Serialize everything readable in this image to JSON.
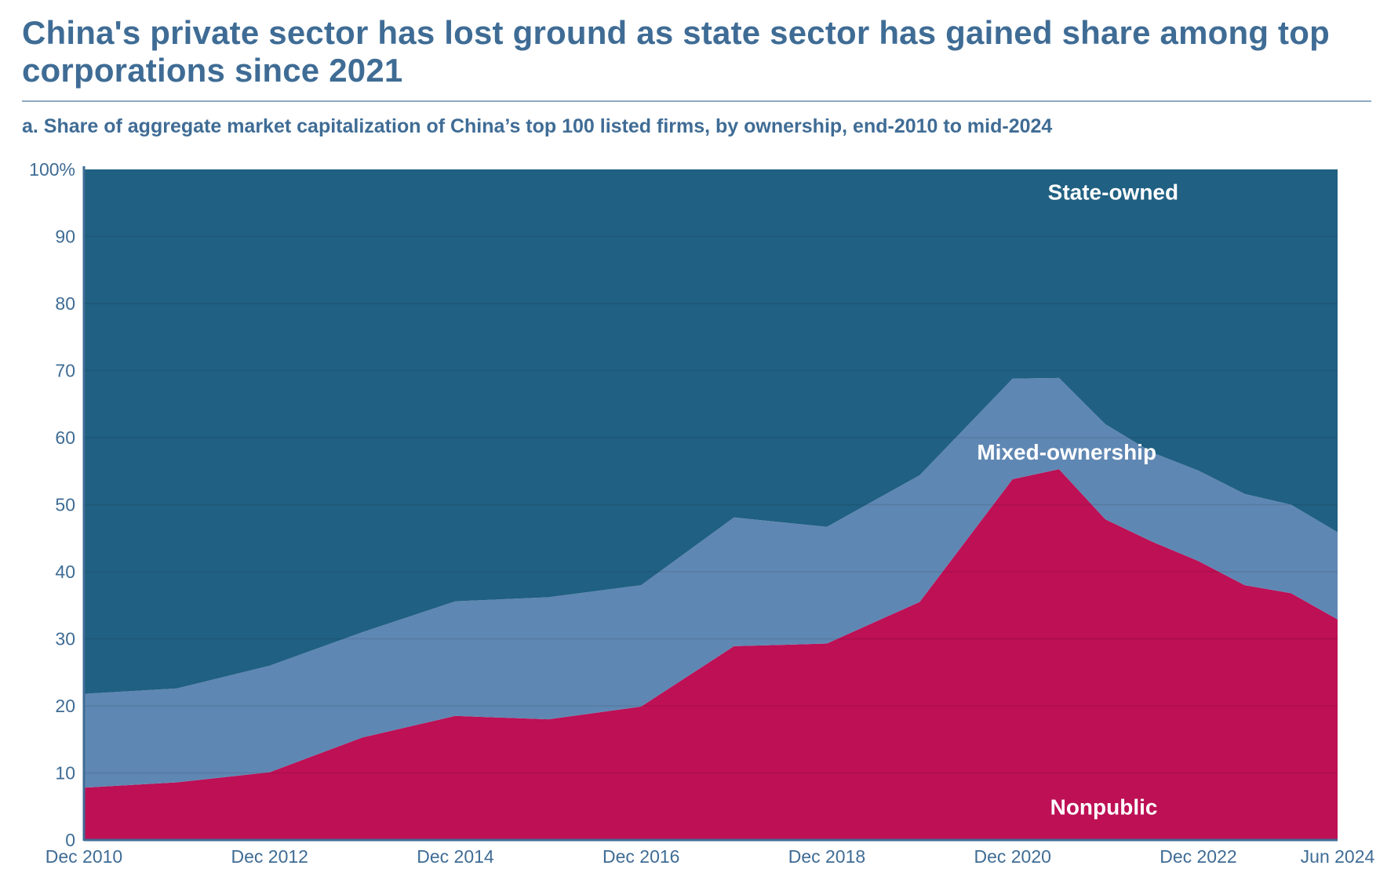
{
  "title": "China's private sector has lost ground as state sector has gained share among top corporations since 2021",
  "subtitle": "a. Share of aggregate market capitalization of China’s top 100 listed firms, by ownership, end-2010 to mid-2024",
  "colors": {
    "state_owned": "#206082",
    "mixed_ownership": "#5f87b3",
    "nonpublic": "#bd1055",
    "axis_text": "#3f6c95",
    "gridline": "#1a5575"
  },
  "chart_data": {
    "type": "area",
    "stacked": true,
    "x": [
      "Dec 2010",
      "Dec 2011",
      "Dec 2012",
      "Dec 2013",
      "Dec 2014",
      "Dec 2015",
      "Dec 2016",
      "Dec 2017",
      "Dec 2018",
      "Dec 2019",
      "Dec 2020",
      "Jun 2021",
      "Dec 2021",
      "Jun 2022",
      "Dec 2022",
      "Jun 2023",
      "Dec 2023",
      "Jun 2024"
    ],
    "x_numeric": [
      2010.917,
      2011.917,
      2012.917,
      2013.917,
      2014.917,
      2015.917,
      2016.917,
      2017.917,
      2018.917,
      2019.917,
      2020.917,
      2021.417,
      2021.917,
      2022.417,
      2022.917,
      2023.417,
      2023.917,
      2024.417
    ],
    "series": [
      {
        "name": "Nonpublic",
        "values": [
          7.8,
          8.6,
          10.1,
          15.3,
          18.5,
          18.0,
          19.9,
          28.9,
          29.3,
          35.5,
          53.8,
          55.3,
          47.8,
          44.5,
          41.6,
          38.0,
          36.8,
          32.9
        ]
      },
      {
        "name": "Mixed-ownership",
        "values": [
          14.0,
          14.0,
          15.9,
          15.7,
          17.1,
          18.2,
          18.1,
          19.2,
          17.4,
          18.9,
          15.0,
          13.6,
          14.2,
          13.3,
          13.5,
          13.6,
          13.2,
          13.0
        ]
      },
      {
        "name": "State-owned",
        "values": [
          78.2,
          77.4,
          74.0,
          69.0,
          64.4,
          63.8,
          62.0,
          51.9,
          53.3,
          45.6,
          31.2,
          31.1,
          38.0,
          42.2,
          44.9,
          48.4,
          50.0,
          54.1
        ]
      }
    ],
    "series_labels": {
      "state_owned": "State-owned",
      "mixed_ownership": "Mixed-ownership",
      "nonpublic": "Nonpublic"
    },
    "x_ticks": [
      {
        "label": "Dec 2010",
        "value": 2010.917
      },
      {
        "label": "Dec 2012",
        "value": 2012.917
      },
      {
        "label": "Dec 2014",
        "value": 2014.917
      },
      {
        "label": "Dec 2016",
        "value": 2016.917
      },
      {
        "label": "Dec 2018",
        "value": 2018.917
      },
      {
        "label": "Dec 2020",
        "value": 2020.917
      },
      {
        "label": "Dec 2022",
        "value": 2022.917
      },
      {
        "label": "Jun 2024",
        "value": 2024.417
      }
    ],
    "y_ticks": [
      0,
      10,
      20,
      30,
      40,
      50,
      60,
      70,
      80,
      90,
      100
    ],
    "y_tick_labels": [
      "0",
      "10",
      "20",
      "30",
      "40",
      "50",
      "60",
      "70",
      "80",
      "90",
      "100%"
    ],
    "xlim": [
      2010.917,
      2024.417
    ],
    "ylim": [
      0,
      100
    ],
    "xlabel": "",
    "ylabel": "",
    "legend": "inline"
  }
}
